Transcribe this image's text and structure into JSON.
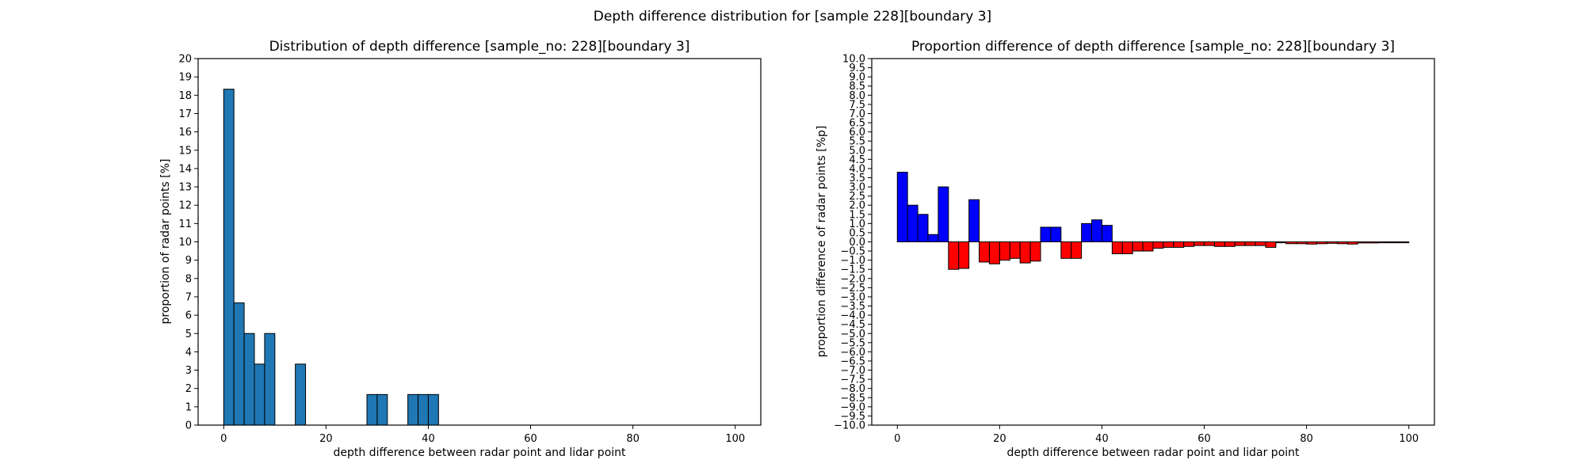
{
  "figure": {
    "suptitle": "Depth difference distribution for [sample 228][boundary 3]"
  },
  "chart_data": [
    {
      "type": "bar",
      "title": "Distribution of depth difference [sample_no: 228][boundary 3]",
      "xlabel": "depth difference between radar point and lidar point",
      "ylabel": "proportion of radar points [%]",
      "xlim": [
        -5,
        105
      ],
      "ylim": [
        0,
        20
      ],
      "xticks": [
        0,
        20,
        40,
        60,
        80,
        100
      ],
      "yticks": [
        0,
        1,
        2,
        3,
        4,
        5,
        6,
        7,
        8,
        9,
        10,
        11,
        12,
        13,
        14,
        15,
        16,
        17,
        18,
        19,
        20
      ],
      "bin_width": 2,
      "bar_color": "#1f77b4",
      "edge_color": "#000000",
      "bars": [
        {
          "x": 0,
          "value": 18.33
        },
        {
          "x": 2,
          "value": 6.67
        },
        {
          "x": 4,
          "value": 5.0
        },
        {
          "x": 6,
          "value": 3.33
        },
        {
          "x": 8,
          "value": 5.0
        },
        {
          "x": 14,
          "value": 3.33
        },
        {
          "x": 28,
          "value": 1.67
        },
        {
          "x": 30,
          "value": 1.67
        },
        {
          "x": 36,
          "value": 1.67
        },
        {
          "x": 38,
          "value": 1.67
        },
        {
          "x": 40,
          "value": 1.67
        }
      ]
    },
    {
      "type": "bar",
      "title": "Proportion difference of depth difference [sample_no: 228][boundary 3]",
      "xlabel": "depth difference between radar point and lidar point",
      "ylabel": "proportion difference of radar points [%p]",
      "xlim": [
        -5,
        105
      ],
      "ylim": [
        -10,
        10
      ],
      "xticks": [
        0,
        20,
        40,
        60,
        80,
        100
      ],
      "yticks": [
        -10.0,
        -9.5,
        -9.0,
        -8.5,
        -8.0,
        -7.5,
        -7.0,
        -6.5,
        -6.0,
        -5.5,
        -5.0,
        -4.5,
        -4.0,
        -3.5,
        -3.0,
        -2.5,
        -2.0,
        -1.5,
        -1.0,
        -0.5,
        0.0,
        0.5,
        1.0,
        1.5,
        2.0,
        2.5,
        3.0,
        3.5,
        4.0,
        4.5,
        5.0,
        5.5,
        6.0,
        6.5,
        7.0,
        7.5,
        8.0,
        8.5,
        9.0,
        9.5,
        10.0
      ],
      "bin_width": 2,
      "positive_color": "#0000ff",
      "negative_color": "#ff0000",
      "edge_color": "#000000",
      "x": [
        0,
        2,
        4,
        6,
        8,
        10,
        12,
        14,
        16,
        18,
        20,
        22,
        24,
        26,
        28,
        30,
        32,
        34,
        36,
        38,
        40,
        42,
        44,
        46,
        48,
        50,
        52,
        54,
        56,
        58,
        60,
        62,
        64,
        66,
        68,
        70,
        72,
        74,
        76,
        78,
        80,
        82,
        84,
        86,
        88,
        90,
        92,
        94,
        96,
        98
      ],
      "values": [
        3.8,
        2.0,
        1.5,
        0.4,
        3.0,
        -1.5,
        -1.45,
        2.3,
        -1.1,
        -1.2,
        -1.0,
        -0.9,
        -1.15,
        -1.05,
        0.8,
        0.8,
        -0.9,
        -0.9,
        1.0,
        1.2,
        0.9,
        -0.65,
        -0.65,
        -0.5,
        -0.5,
        -0.35,
        -0.3,
        -0.3,
        -0.25,
        -0.2,
        -0.2,
        -0.25,
        -0.25,
        -0.2,
        -0.2,
        -0.2,
        -0.3,
        -0.05,
        -0.1,
        -0.1,
        -0.12,
        -0.1,
        -0.08,
        -0.1,
        -0.12,
        -0.06,
        -0.06,
        -0.05,
        -0.05,
        -0.05
      ]
    }
  ]
}
